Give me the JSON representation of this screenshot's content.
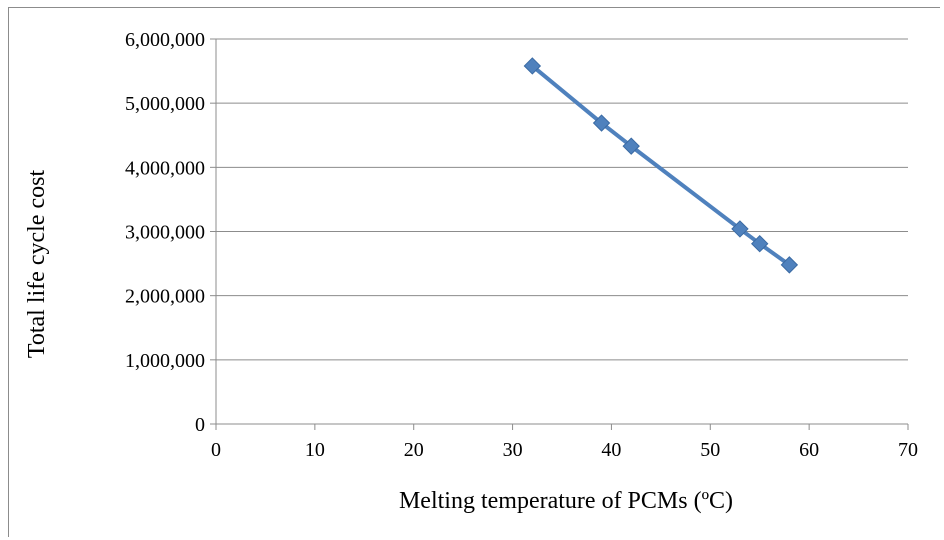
{
  "chart_data": {
    "type": "line",
    "title": "",
    "xlabel": "Melting temperature of PCMs (ºC)",
    "ylabel": "Total life cycle cost",
    "xlim": [
      0,
      70
    ],
    "ylim": [
      0,
      6000000
    ],
    "x_ticks": [
      0,
      10,
      20,
      30,
      40,
      50,
      60,
      70
    ],
    "x_tick_labels": [
      "0",
      "10",
      "20",
      "30",
      "40",
      "50",
      "60",
      "70"
    ],
    "y_ticks": [
      0,
      1000000,
      2000000,
      3000000,
      4000000,
      5000000,
      6000000
    ],
    "y_tick_labels": [
      "0",
      "1,000,000",
      "2,000,000",
      "3,000,000",
      "4,000,000",
      "5,000,000",
      "6,000,000"
    ],
    "grid": "horizontal",
    "legend": "none",
    "series": [
      {
        "color": "#4f81bd",
        "marker": "diamond",
        "x": [
          32,
          39,
          42,
          53,
          55,
          58
        ],
        "y": [
          5580000,
          4690000,
          4330000,
          3040000,
          2810000,
          2480000
        ]
      }
    ]
  }
}
